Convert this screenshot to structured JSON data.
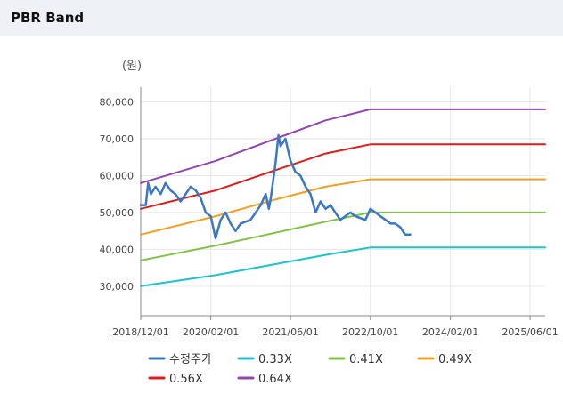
{
  "header": {
    "title": "PBR Band"
  },
  "chart_data": {
    "type": "line",
    "unit_label": "(원)",
    "y_ticks": [
      "80,000",
      "70,000",
      "60,000",
      "50,000",
      "40,000",
      "30,000"
    ],
    "y_tick_values": [
      80000,
      70000,
      60000,
      50000,
      40000,
      30000
    ],
    "ylim": [
      22000,
      84000
    ],
    "x_ticks": [
      "2018/12/01",
      "2020/02/01",
      "2021/06/01",
      "2022/10/01",
      "2024/02/01",
      "2025/06/01"
    ],
    "x_tick_dates": [
      "2018-12-01",
      "2020-02-01",
      "2021-06-01",
      "2022-10-01",
      "2024-02-01",
      "2025-06-01"
    ],
    "xlim": [
      "2018-12-01",
      "2025-09-01"
    ],
    "grid": true,
    "legend_position": "bottom",
    "series": [
      {
        "name": "수정주가",
        "color": "#3a78c4",
        "width": 2.5,
        "points": [
          [
            "2018-12-01",
            52000
          ],
          [
            "2019-01-01",
            52000
          ],
          [
            "2019-01-15",
            58000
          ],
          [
            "2019-02-01",
            55000
          ],
          [
            "2019-03-01",
            57000
          ],
          [
            "2019-04-01",
            55000
          ],
          [
            "2019-05-01",
            58000
          ],
          [
            "2019-06-01",
            56000
          ],
          [
            "2019-07-01",
            55000
          ],
          [
            "2019-08-01",
            53000
          ],
          [
            "2019-09-01",
            55000
          ],
          [
            "2019-10-01",
            57000
          ],
          [
            "2019-11-01",
            56000
          ],
          [
            "2019-12-01",
            54000
          ],
          [
            "2020-01-01",
            50000
          ],
          [
            "2020-02-01",
            49000
          ],
          [
            "2020-03-01",
            43000
          ],
          [
            "2020-04-01",
            48000
          ],
          [
            "2020-05-01",
            50000
          ],
          [
            "2020-06-01",
            47000
          ],
          [
            "2020-07-01",
            45000
          ],
          [
            "2020-08-01",
            47000
          ],
          [
            "2020-09-01",
            47500
          ],
          [
            "2020-10-01",
            48000
          ],
          [
            "2020-11-01",
            50000
          ],
          [
            "2020-12-01",
            52000
          ],
          [
            "2021-01-01",
            55000
          ],
          [
            "2021-01-20",
            51000
          ],
          [
            "2021-02-01",
            54000
          ],
          [
            "2021-03-01",
            63000
          ],
          [
            "2021-03-20",
            71000
          ],
          [
            "2021-04-01",
            68000
          ],
          [
            "2021-05-01",
            70000
          ],
          [
            "2021-06-01",
            64000
          ],
          [
            "2021-07-01",
            61000
          ],
          [
            "2021-08-01",
            60000
          ],
          [
            "2021-09-01",
            57000
          ],
          [
            "2021-10-01",
            55000
          ],
          [
            "2021-10-20",
            52000
          ],
          [
            "2021-11-01",
            50000
          ],
          [
            "2021-12-01",
            53000
          ],
          [
            "2022-01-01",
            51000
          ],
          [
            "2022-02-01",
            52000
          ],
          [
            "2022-03-01",
            50000
          ],
          [
            "2022-04-01",
            48000
          ],
          [
            "2022-05-01",
            49000
          ],
          [
            "2022-06-01",
            50000
          ],
          [
            "2022-07-01",
            49000
          ],
          [
            "2022-08-01",
            48500
          ],
          [
            "2022-09-01",
            48000
          ],
          [
            "2022-10-01",
            51000
          ],
          [
            "2022-11-01",
            50000
          ],
          [
            "2022-12-01",
            49000
          ],
          [
            "2023-01-01",
            48000
          ],
          [
            "2023-02-01",
            47000
          ],
          [
            "2023-03-01",
            47000
          ],
          [
            "2023-04-01",
            46000
          ],
          [
            "2023-05-01",
            44000
          ],
          [
            "2023-06-01",
            44000
          ]
        ]
      },
      {
        "name": "0.33X",
        "color": "#1cc3c8",
        "width": 2,
        "points": [
          [
            "2018-12-01",
            30000
          ],
          [
            "2020-03-01",
            33000
          ],
          [
            "2021-03-01",
            36000
          ],
          [
            "2022-01-01",
            38500
          ],
          [
            "2022-10-01",
            40500
          ],
          [
            "2025-09-01",
            40500
          ]
        ]
      },
      {
        "name": "0.41X",
        "color": "#7ec242",
        "width": 2,
        "points": [
          [
            "2018-12-01",
            37000
          ],
          [
            "2020-03-01",
            41000
          ],
          [
            "2021-03-01",
            44500
          ],
          [
            "2022-01-01",
            47500
          ],
          [
            "2022-10-01",
            50000
          ],
          [
            "2025-09-01",
            50000
          ]
        ]
      },
      {
        "name": "0.49X",
        "color": "#f0a020",
        "width": 2,
        "points": [
          [
            "2018-12-01",
            44000
          ],
          [
            "2020-03-01",
            49000
          ],
          [
            "2021-03-01",
            53500
          ],
          [
            "2022-01-01",
            57000
          ],
          [
            "2022-10-01",
            59000
          ],
          [
            "2025-09-01",
            59000
          ]
        ]
      },
      {
        "name": "0.56X",
        "color": "#dd1c1c",
        "width": 2,
        "points": [
          [
            "2018-12-01",
            51000
          ],
          [
            "2020-03-01",
            56000
          ],
          [
            "2021-03-01",
            61500
          ],
          [
            "2022-01-01",
            66000
          ],
          [
            "2022-10-01",
            68500
          ],
          [
            "2025-09-01",
            68500
          ]
        ]
      },
      {
        "name": "0.64X",
        "color": "#9247b0",
        "width": 2,
        "points": [
          [
            "2018-12-01",
            58000
          ],
          [
            "2020-03-01",
            64000
          ],
          [
            "2021-03-01",
            70000
          ],
          [
            "2022-01-01",
            75000
          ],
          [
            "2022-10-01",
            78000
          ],
          [
            "2025-09-01",
            78000
          ]
        ]
      }
    ]
  }
}
